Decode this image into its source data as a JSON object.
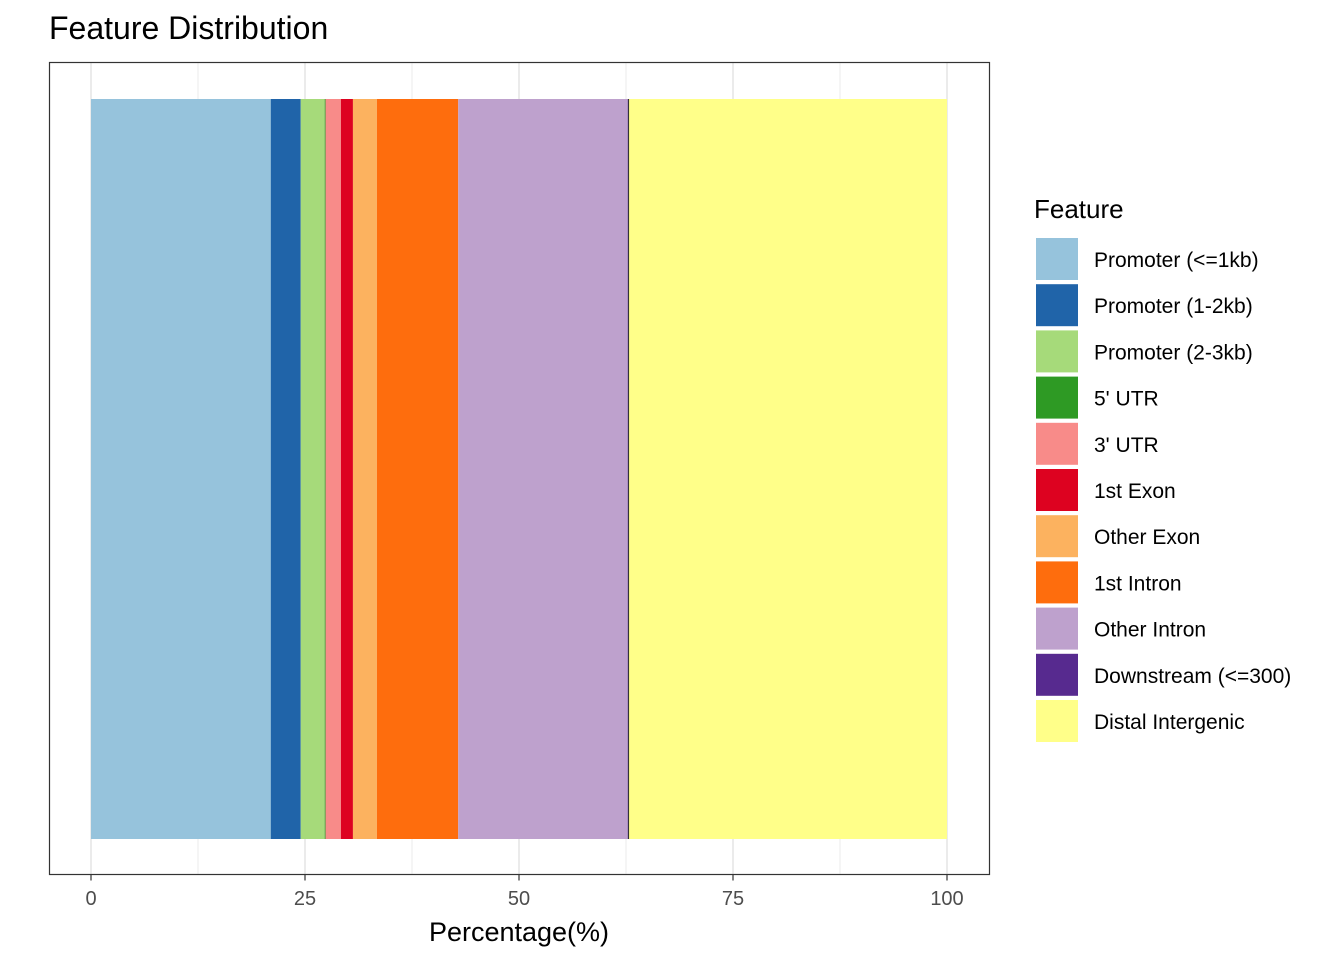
{
  "chart_data": {
    "type": "bar",
    "orientation": "horizontal",
    "stacked": true,
    "title": "Feature Distribution",
    "xlabel": "Percentage(%)",
    "ylabel": "",
    "xlim": [
      0,
      100
    ],
    "x_ticks": [
      0,
      25,
      50,
      75,
      100
    ],
    "grid": true,
    "legend_title": "Feature",
    "legend_position": "right",
    "series": [
      {
        "name": "Promoter (<=1kb)",
        "value": 21.0,
        "color": "#96C3DC"
      },
      {
        "name": "Promoter (1-2kb)",
        "value": 3.5,
        "color": "#2064A9"
      },
      {
        "name": "Promoter (2-3kb)",
        "value": 2.8,
        "color": "#A6DA7A"
      },
      {
        "name": "5' UTR",
        "value": 0.1,
        "color": "#2E9A24"
      },
      {
        "name": "3' UTR",
        "value": 1.8,
        "color": "#F88B89"
      },
      {
        "name": "1st Exon",
        "value": 1.4,
        "color": "#DD0220"
      },
      {
        "name": "Other Exon",
        "value": 2.8,
        "color": "#FCB25F"
      },
      {
        "name": "1st Intron",
        "value": 9.5,
        "color": "#FE6D0D"
      },
      {
        "name": "Other Intron",
        "value": 19.8,
        "color": "#BEA1CD"
      },
      {
        "name": "Downstream (<=300)",
        "value": 0.1,
        "color": "#572A8F"
      },
      {
        "name": "Distal Intergenic",
        "value": 37.2,
        "color": "#FFFF89"
      }
    ]
  }
}
